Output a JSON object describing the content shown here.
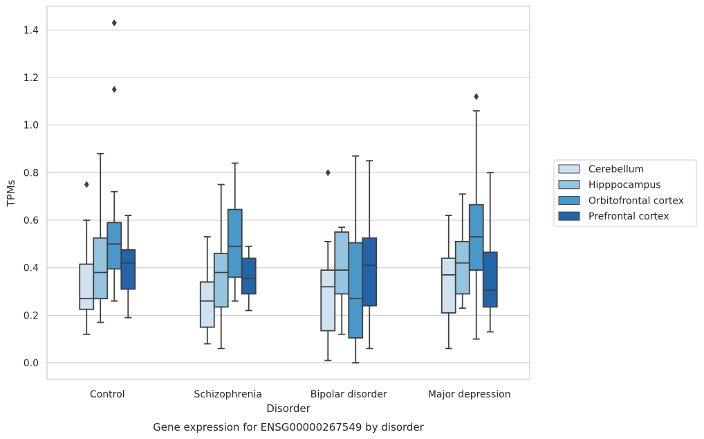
{
  "chart_data": {
    "type": "boxplot",
    "title": "",
    "caption": "Gene expression for ENSG00000267549 by disorder",
    "xlabel": "Disorder",
    "ylabel": "TPMs",
    "ylim": [
      -0.07,
      1.5
    ],
    "yticks": [
      0.0,
      0.2,
      0.4,
      0.6,
      0.8,
      1.0,
      1.2,
      1.4
    ],
    "ytick_labels": [
      "0.0",
      "0.2",
      "0.4",
      "0.6",
      "0.8",
      "1.0",
      "1.2",
      "1.4"
    ],
    "grid": "horizontal",
    "legend_position": "right",
    "categories": [
      "Control",
      "Schizophrenia",
      "Bipolar disorder",
      "Major depression"
    ],
    "series": [
      {
        "name": "Cerebellum",
        "color": "#d0e1f2",
        "boxes": [
          {
            "whisker_low": 0.12,
            "q1": 0.225,
            "median": 0.27,
            "q3": 0.415,
            "whisker_high": 0.6,
            "outliers": [
              0.75
            ]
          },
          {
            "whisker_low": 0.08,
            "q1": 0.15,
            "median": 0.26,
            "q3": 0.34,
            "whisker_high": 0.53,
            "outliers": []
          },
          {
            "whisker_low": 0.01,
            "q1": 0.135,
            "median": 0.32,
            "q3": 0.39,
            "whisker_high": 0.51,
            "outliers": [
              0.8
            ]
          },
          {
            "whisker_low": 0.06,
            "q1": 0.21,
            "median": 0.37,
            "q3": 0.44,
            "whisker_high": 0.62,
            "outliers": []
          }
        ]
      },
      {
        "name": "Hipppocampus",
        "color": "#94c4df",
        "boxes": [
          {
            "whisker_low": 0.17,
            "q1": 0.27,
            "median": 0.38,
            "q3": 0.525,
            "whisker_high": 0.88,
            "outliers": []
          },
          {
            "whisker_low": 0.06,
            "q1": 0.235,
            "median": 0.38,
            "q3": 0.46,
            "whisker_high": 0.75,
            "outliers": []
          },
          {
            "whisker_low": 0.12,
            "q1": 0.29,
            "median": 0.39,
            "q3": 0.55,
            "whisker_high": 0.57,
            "outliers": []
          },
          {
            "whisker_low": 0.23,
            "q1": 0.29,
            "median": 0.42,
            "q3": 0.51,
            "whisker_high": 0.71,
            "outliers": []
          }
        ]
      },
      {
        "name": "Orbitofrontal cortex",
        "color": "#4a98c9",
        "boxes": [
          {
            "whisker_low": 0.26,
            "q1": 0.395,
            "median": 0.5,
            "q3": 0.59,
            "whisker_high": 0.72,
            "outliers": [
              1.15,
              1.43
            ]
          },
          {
            "whisker_low": 0.26,
            "q1": 0.36,
            "median": 0.49,
            "q3": 0.645,
            "whisker_high": 0.84,
            "outliers": []
          },
          {
            "whisker_low": 0.0,
            "q1": 0.105,
            "median": 0.27,
            "q3": 0.505,
            "whisker_high": 0.87,
            "outliers": []
          },
          {
            "whisker_low": 0.1,
            "q1": 0.39,
            "median": 0.53,
            "q3": 0.665,
            "whisker_high": 1.06,
            "outliers": [
              1.12
            ]
          }
        ]
      },
      {
        "name": "Prefrontal cortex",
        "color": "#2464a8",
        "boxes": [
          {
            "whisker_low": 0.19,
            "q1": 0.31,
            "median": 0.42,
            "q3": 0.475,
            "whisker_high": 0.62,
            "outliers": []
          },
          {
            "whisker_low": 0.22,
            "q1": 0.29,
            "median": 0.355,
            "q3": 0.44,
            "whisker_high": 0.49,
            "outliers": []
          },
          {
            "whisker_low": 0.06,
            "q1": 0.24,
            "median": 0.41,
            "q3": 0.525,
            "whisker_high": 0.85,
            "outliers": []
          },
          {
            "whisker_low": 0.13,
            "q1": 0.235,
            "median": 0.305,
            "q3": 0.465,
            "whisker_high": 0.8,
            "outliers": []
          }
        ]
      }
    ]
  }
}
